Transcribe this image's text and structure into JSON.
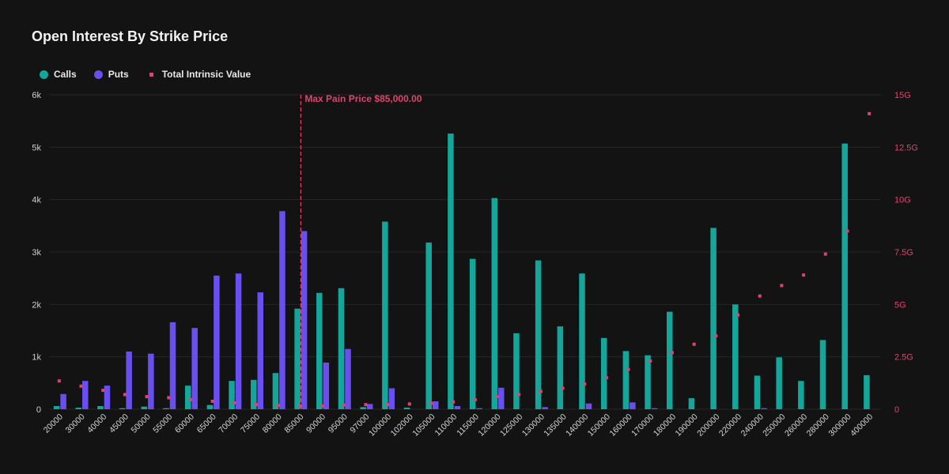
{
  "chart_data": {
    "type": "bar",
    "title": "Open Interest By Strike Price",
    "legend": [
      {
        "name": "Calls",
        "color": "#14a69a",
        "shape": "circle"
      },
      {
        "name": "Puts",
        "color": "#6a4ff0",
        "shape": "circle"
      },
      {
        "name": "Total Intrinsic Value",
        "color": "#e0446a",
        "shape": "square"
      }
    ],
    "legend_position": "top-left",
    "categories": [
      "20000",
      "30000",
      "40000",
      "45000",
      "50000",
      "55000",
      "60000",
      "65000",
      "70000",
      "75000",
      "80000",
      "85000",
      "90000",
      "95000",
      "97000",
      "100000",
      "102000",
      "105000",
      "110000",
      "115000",
      "120000",
      "125000",
      "130000",
      "135000",
      "140000",
      "150000",
      "160000",
      "170000",
      "180000",
      "190000",
      "200000",
      "220000",
      "240000",
      "250000",
      "260000",
      "280000",
      "300000",
      "400000"
    ],
    "series": [
      {
        "name": "Calls",
        "axis": "left",
        "values": [
          60,
          30,
          60,
          20,
          50,
          20,
          450,
          80,
          540,
          560,
          690,
          1920,
          2220,
          2310,
          40,
          3580,
          30,
          3180,
          5260,
          2870,
          4030,
          1450,
          2840,
          1580,
          2590,
          1360,
          1110,
          1030,
          1860,
          210,
          3460,
          2000,
          640,
          990,
          540,
          1320,
          5070,
          650
        ]
      },
      {
        "name": "Puts",
        "axis": "left",
        "values": [
          290,
          540,
          450,
          1100,
          1060,
          1660,
          1550,
          2550,
          2590,
          2230,
          3780,
          3400,
          890,
          1150,
          100,
          400,
          0,
          150,
          60,
          20,
          410,
          0,
          40,
          0,
          110,
          0,
          130,
          20,
          0,
          0,
          0,
          0,
          20,
          0,
          0,
          0,
          0,
          0
        ]
      },
      {
        "name": "Total Intrinsic Value",
        "axis": "right",
        "marker": "square",
        "values": [
          1.35,
          1.1,
          0.9,
          0.7,
          0.6,
          0.55,
          0.45,
          0.38,
          0.3,
          0.22,
          0.18,
          0.15,
          0.15,
          0.2,
          0.22,
          0.22,
          0.25,
          0.28,
          0.35,
          0.45,
          0.6,
          0.7,
          0.85,
          1.0,
          1.2,
          1.5,
          1.9,
          2.3,
          2.7,
          3.1,
          3.5,
          4.5,
          5.4,
          5.9,
          6.4,
          7.4,
          8.5,
          14.1
        ]
      }
    ],
    "y_left": {
      "min": 0,
      "max": 6000,
      "ticks": [
        0,
        1000,
        2000,
        3000,
        4000,
        5000,
        6000
      ],
      "tick_labels": [
        "0",
        "1k",
        "2k",
        "3k",
        "4k",
        "5k",
        "6k"
      ]
    },
    "y_right": {
      "min": 0,
      "max": 15,
      "ticks": [
        0,
        2.5,
        5,
        7.5,
        10,
        12.5,
        15
      ],
      "tick_labels": [
        "0",
        "2.5G",
        "5G",
        "7.5G",
        "10G",
        "12.5G",
        "15G"
      ]
    },
    "annotation": {
      "text": "Max Pain Price $85,000.00",
      "category": "85000",
      "color": "#e0446a"
    },
    "grid": true
  }
}
